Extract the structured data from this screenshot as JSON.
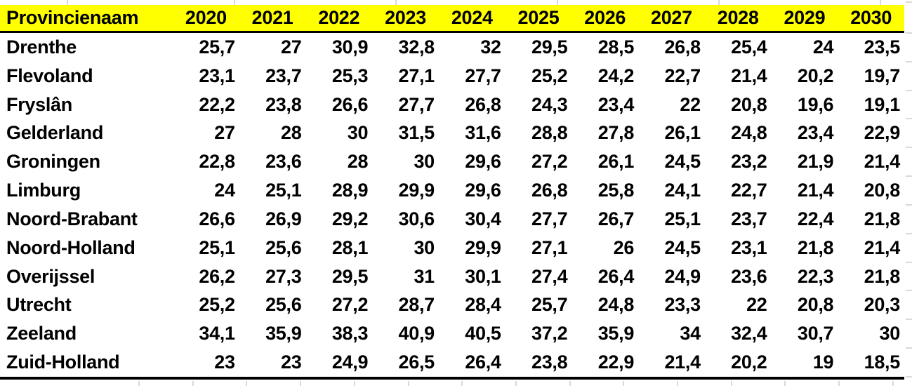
{
  "table": {
    "header": {
      "name_column": "Provincienaam",
      "years": [
        "2020",
        "2021",
        "2022",
        "2023",
        "2024",
        "2025",
        "2026",
        "2027",
        "2028",
        "2029",
        "2030"
      ]
    },
    "rows": [
      {
        "name": "Drenthe",
        "values": [
          "25,7",
          "27",
          "30,9",
          "32,8",
          "32",
          "29,5",
          "28,5",
          "26,8",
          "25,4",
          "24",
          "23,5"
        ]
      },
      {
        "name": "Flevoland",
        "values": [
          "23,1",
          "23,7",
          "25,3",
          "27,1",
          "27,7",
          "25,2",
          "24,2",
          "22,7",
          "21,4",
          "20,2",
          "19,7"
        ]
      },
      {
        "name": "Fryslân",
        "values": [
          "22,2",
          "23,8",
          "26,6",
          "27,7",
          "26,8",
          "24,3",
          "23,4",
          "22",
          "20,8",
          "19,6",
          "19,1"
        ]
      },
      {
        "name": "Gelderland",
        "values": [
          "27",
          "28",
          "30",
          "31,5",
          "31,6",
          "28,8",
          "27,8",
          "26,1",
          "24,8",
          "23,4",
          "22,9"
        ]
      },
      {
        "name": "Groningen",
        "values": [
          "22,8",
          "23,6",
          "28",
          "30",
          "29,6",
          "27,2",
          "26,1",
          "24,5",
          "23,2",
          "21,9",
          "21,4"
        ]
      },
      {
        "name": "Limburg",
        "values": [
          "24",
          "25,1",
          "28,9",
          "29,9",
          "29,6",
          "26,8",
          "25,8",
          "24,1",
          "22,7",
          "21,4",
          "20,8"
        ]
      },
      {
        "name": "Noord-Brabant",
        "values": [
          "26,6",
          "26,9",
          "29,2",
          "30,6",
          "30,4",
          "27,7",
          "26,7",
          "25,1",
          "23,7",
          "22,4",
          "21,8"
        ]
      },
      {
        "name": "Noord-Holland",
        "values": [
          "25,1",
          "25,6",
          "28,1",
          "30",
          "29,9",
          "27,1",
          "26",
          "24,5",
          "23,1",
          "21,8",
          "21,4"
        ]
      },
      {
        "name": "Overijssel",
        "values": [
          "26,2",
          "27,3",
          "29,5",
          "31",
          "30,1",
          "27,4",
          "26,4",
          "24,9",
          "23,6",
          "22,3",
          "21,8"
        ]
      },
      {
        "name": "Utrecht",
        "values": [
          "25,2",
          "25,6",
          "27,2",
          "28,7",
          "28,4",
          "25,7",
          "24,8",
          "23,3",
          "22",
          "20,8",
          "20,3"
        ]
      },
      {
        "name": "Zeeland",
        "values": [
          "34,1",
          "35,9",
          "38,3",
          "40,9",
          "40,5",
          "37,2",
          "35,9",
          "34",
          "32,4",
          "30,7",
          "30"
        ]
      },
      {
        "name": "Zuid-Holland",
        "values": [
          "23",
          "23",
          "24,9",
          "26,5",
          "26,4",
          "23,8",
          "22,9",
          "21,4",
          "20,2",
          "19",
          "18,5"
        ]
      }
    ]
  },
  "colors": {
    "header_bg": "#FFFF00",
    "text": "#000000",
    "border": "#000000",
    "gridline": "#D9D9D9"
  }
}
